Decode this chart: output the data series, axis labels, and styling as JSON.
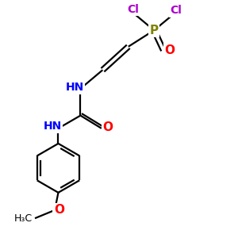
{
  "bg_color": "#ffffff",
  "atom_colors": {
    "Cl": "#aa00cc",
    "P": "#808000",
    "O": "#ff0000",
    "N": "#0000ff",
    "C": "#000000"
  },
  "bond_color": "#000000",
  "bond_width": 1.6,
  "figsize": [
    3.0,
    3.0
  ],
  "dpi": 100,
  "xlim": [
    0,
    10
  ],
  "ylim": [
    0,
    10
  ]
}
